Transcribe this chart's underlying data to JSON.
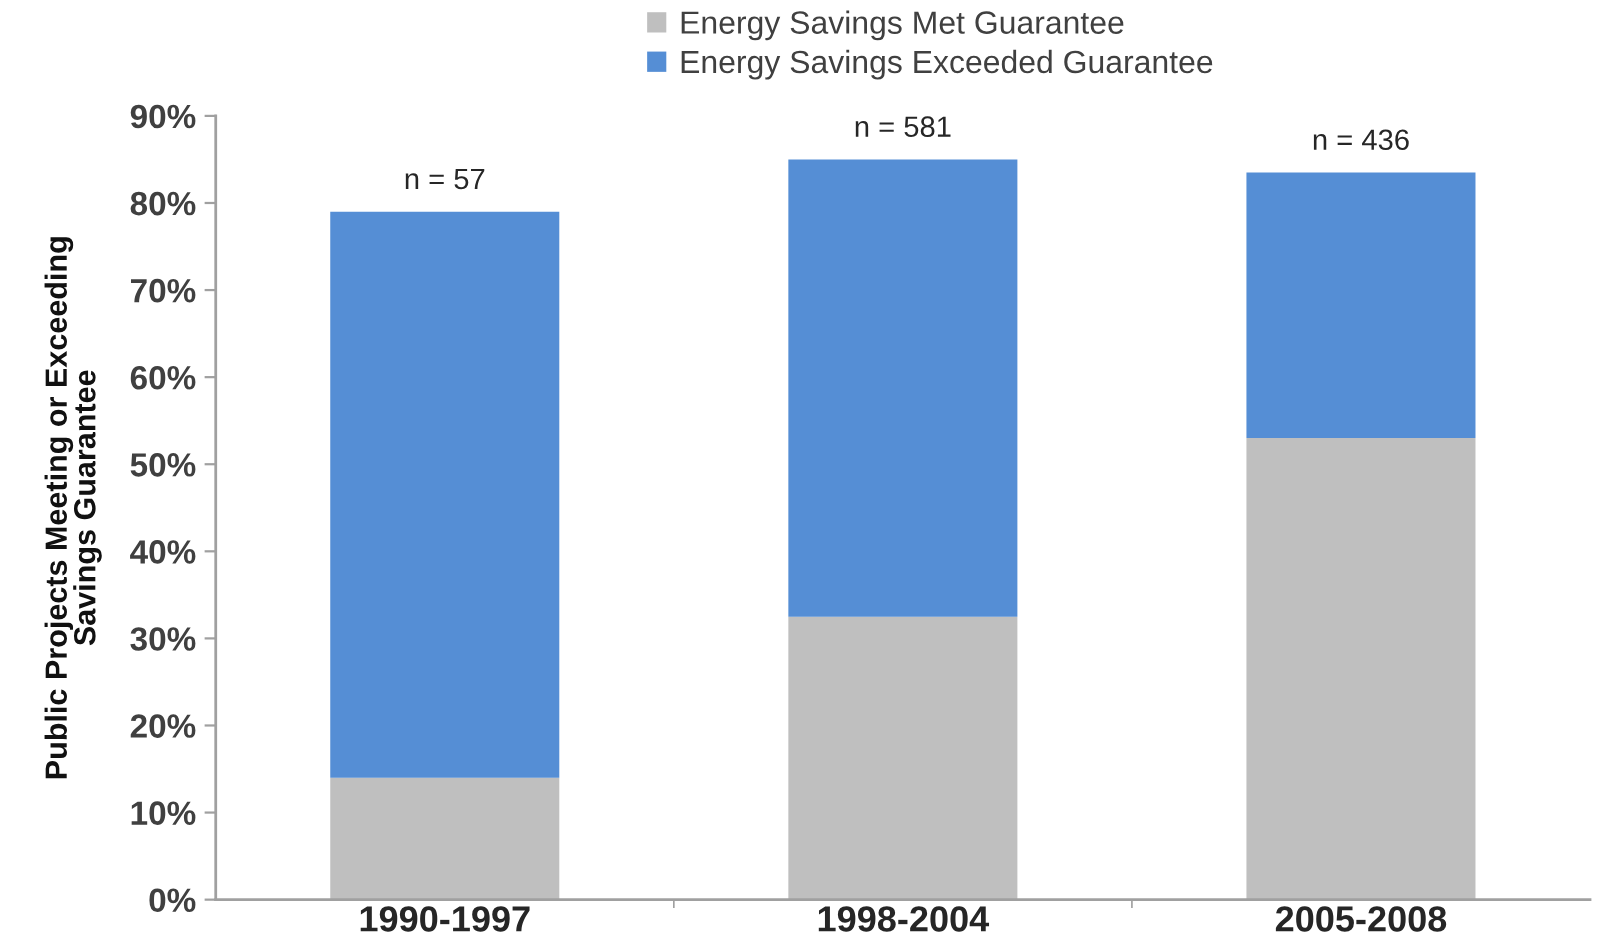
{
  "chart_data": {
    "type": "bar",
    "stacked": true,
    "categories": [
      "1990-1997",
      "1998-2004",
      "2005-2008"
    ],
    "series": [
      {
        "name": "Energy Savings Met Guarantee",
        "color": "#bfbfbf",
        "values": [
          14,
          32.5,
          53
        ]
      },
      {
        "name": "Energy Savings Exceeded Guarantee",
        "color": "#558ed5",
        "values": [
          65,
          52.5,
          30.5
        ]
      }
    ],
    "ylabel": "Public Projects Meeting or Exceeding\nSavings Guarantee",
    "ylim": [
      0,
      90
    ],
    "yticks": [
      {
        "value": 0,
        "label": "0%"
      },
      {
        "value": 10,
        "label": "10%"
      },
      {
        "value": 20,
        "label": "20%"
      },
      {
        "value": 30,
        "label": "30%"
      },
      {
        "value": 40,
        "label": "40%"
      },
      {
        "value": 50,
        "label": "50%"
      },
      {
        "value": 60,
        "label": "60%"
      },
      {
        "value": 70,
        "label": "70%"
      },
      {
        "value": 80,
        "label": "80%"
      },
      {
        "value": 90,
        "label": "90%"
      }
    ],
    "annotations": [
      {
        "text": "n = 57",
        "x": "1990-1997",
        "y": 79
      },
      {
        "text": "n = 581",
        "x": "1998-2004",
        "y": 85
      },
      {
        "text": "n = 436",
        "x": "2005-2008",
        "y": 83.5
      }
    ],
    "legend": "top",
    "grid": false
  }
}
